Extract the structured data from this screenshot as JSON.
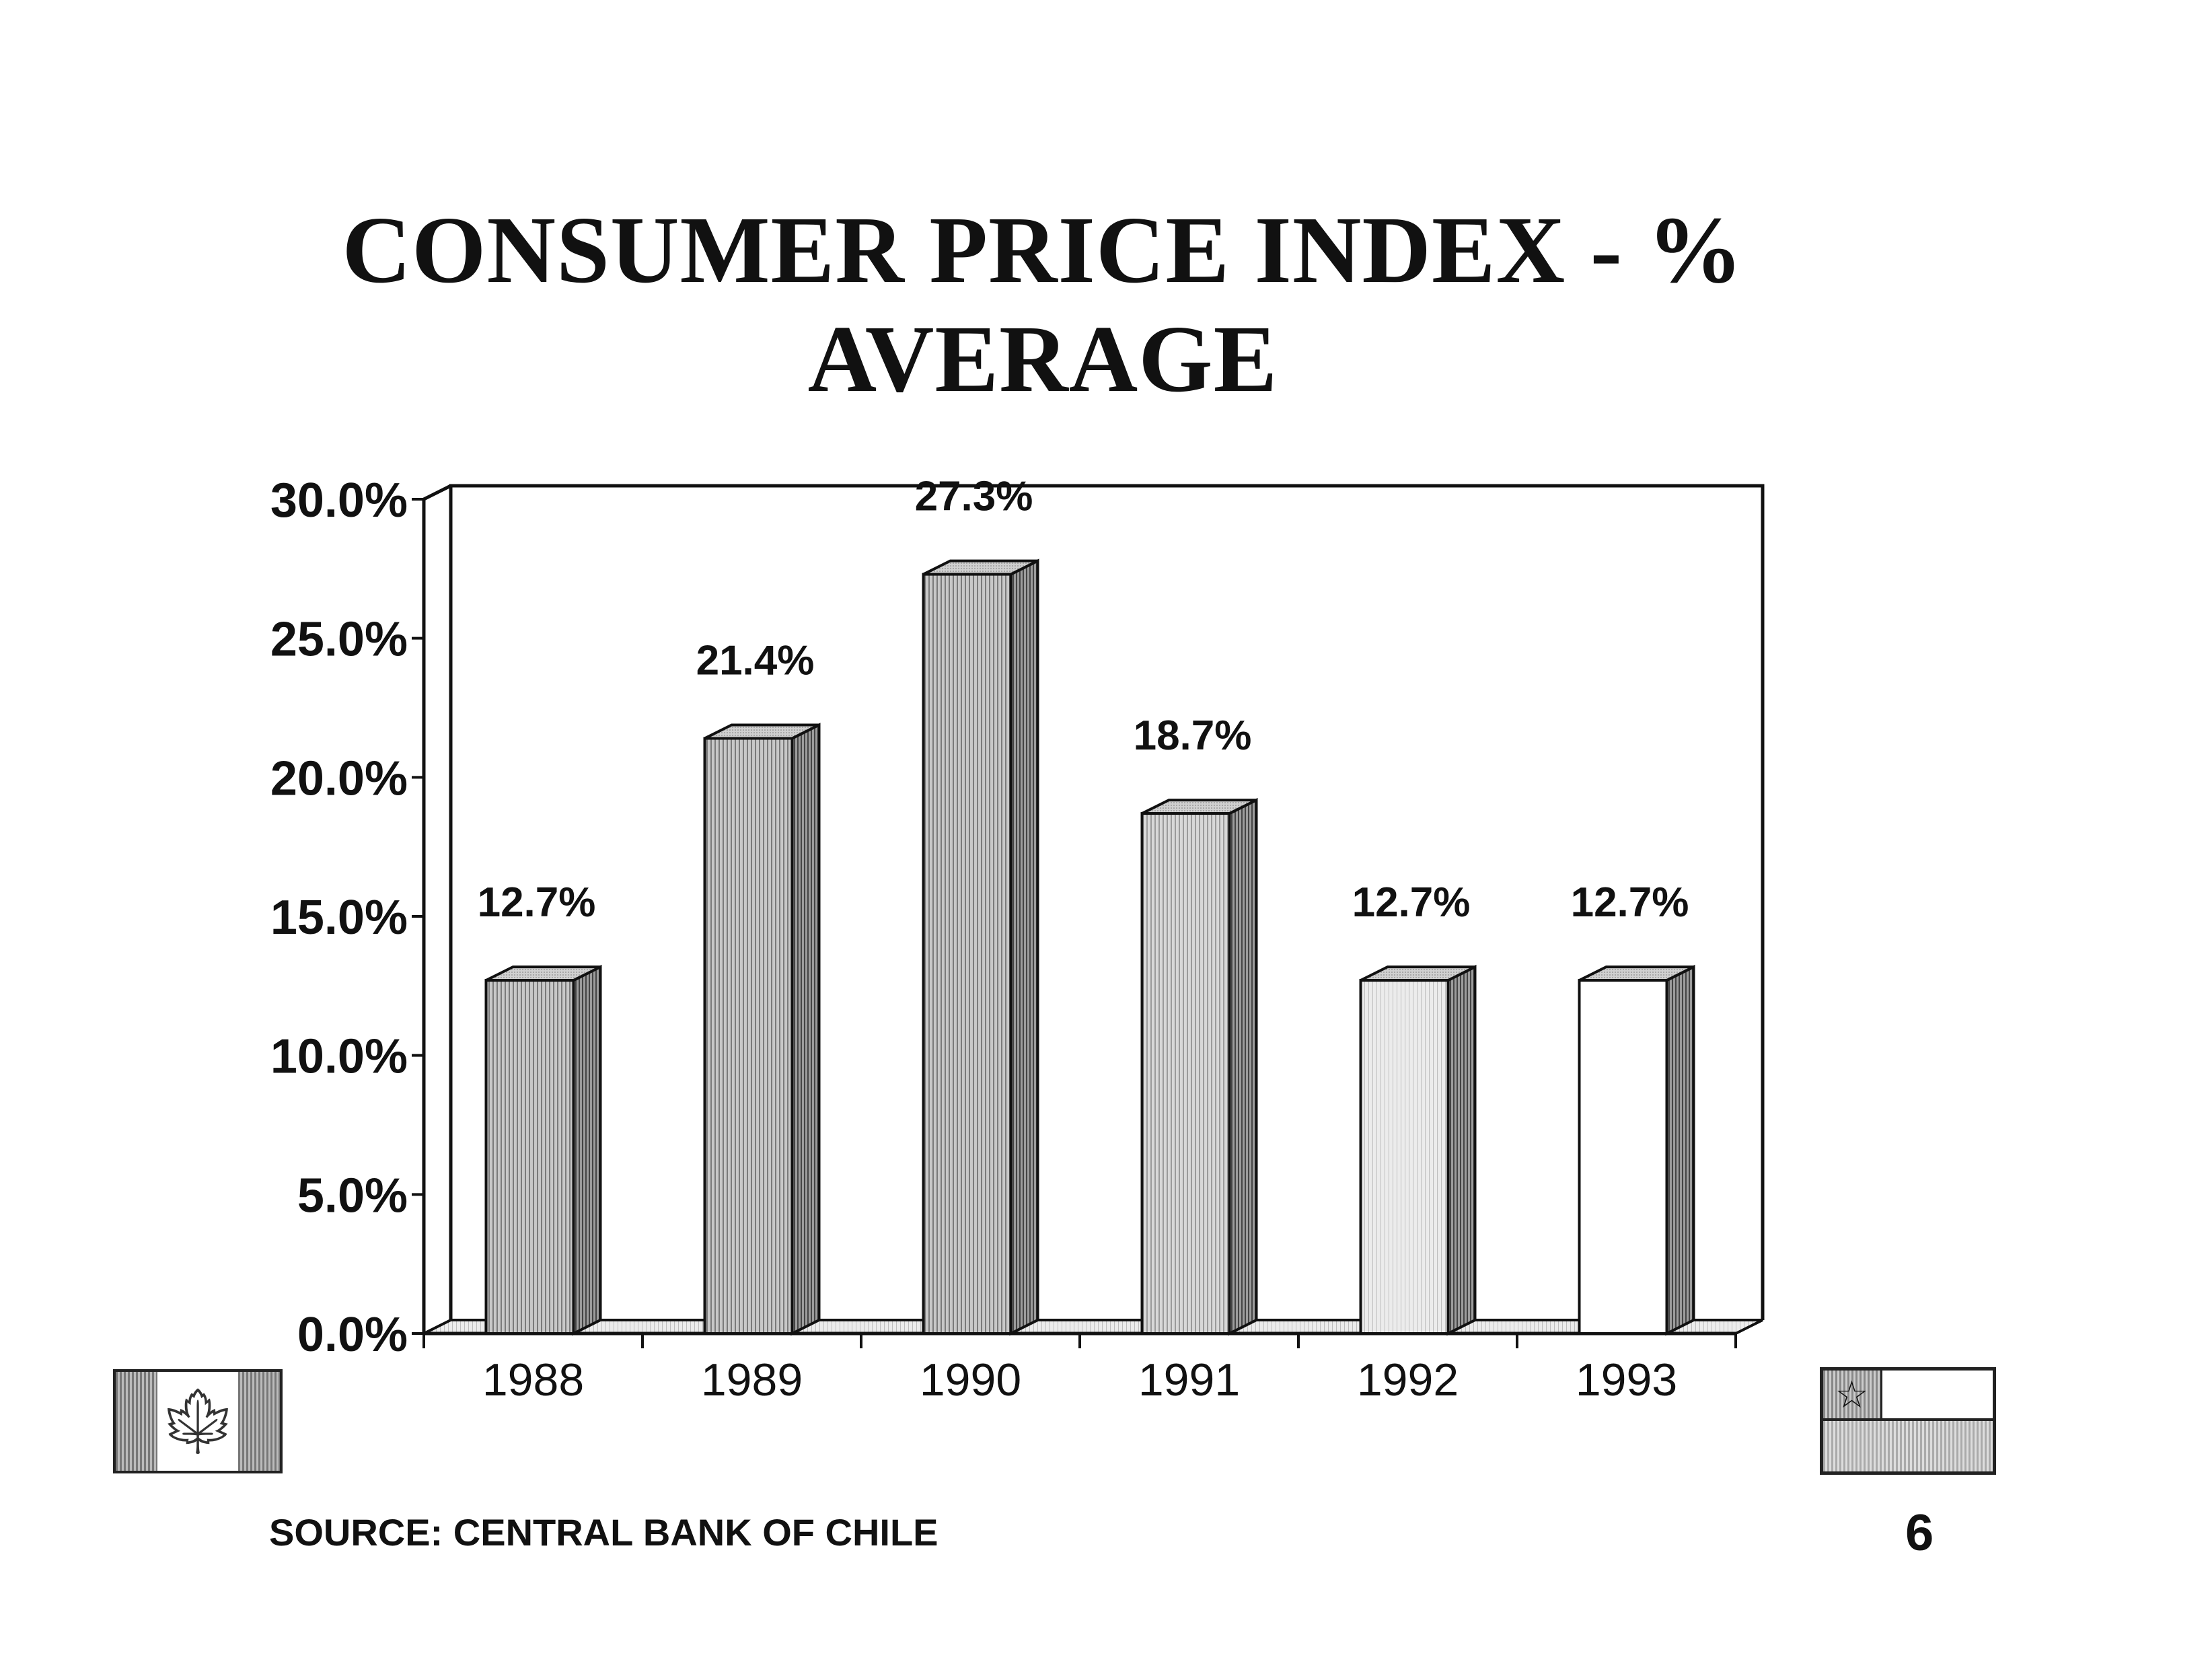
{
  "chart_data": {
    "type": "bar",
    "title": "CONSUMER PRICE INDEX - % AVERAGE",
    "title_lines": [
      "CONSUMER PRICE INDEX - %",
      "AVERAGE"
    ],
    "categories": [
      "1988",
      "1989",
      "1990",
      "1991",
      "1992",
      "1993"
    ],
    "values": [
      12.7,
      21.4,
      27.3,
      18.7,
      12.7,
      12.7
    ],
    "data_labels": [
      "12.7%",
      "21.4%",
      "27.3%",
      "18.7%",
      "12.7%",
      "12.7%"
    ],
    "ylim": [
      0,
      30
    ],
    "yticks": [
      0,
      5,
      10,
      15,
      20,
      25,
      30
    ],
    "ytick_labels": [
      "0.0%",
      "5.0%",
      "10.0%",
      "15.0%",
      "20.0%",
      "25.0%",
      "30.0%"
    ],
    "xlabel": "",
    "ylabel": "",
    "grid": false,
    "style": "3d-column"
  },
  "flags": {
    "left_icon": "canada-flag-icon",
    "right_icon": "chile-flag-icon"
  },
  "footer": {
    "source": "SOURCE: CENTRAL BANK OF CHILE",
    "page_number": "6"
  }
}
